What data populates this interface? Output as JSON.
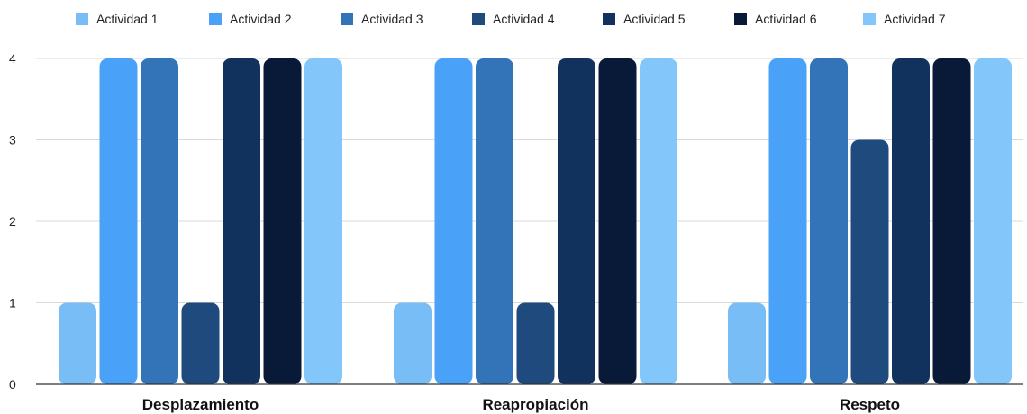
{
  "chart_data": {
    "type": "bar",
    "categories": [
      "Desplazamiento",
      "Reapropiación",
      "Respeto"
    ],
    "series": [
      {
        "name": "Actividad 1",
        "color": "#78bdf5",
        "values": [
          1,
          1,
          1
        ]
      },
      {
        "name": "Actividad 2",
        "color": "#4aa1f8",
        "values": [
          4,
          4,
          4
        ]
      },
      {
        "name": "Actividad 3",
        "color": "#3274b7",
        "values": [
          4,
          4,
          4
        ]
      },
      {
        "name": "Actividad 4",
        "color": "#1f4a7d",
        "values": [
          1,
          1,
          3
        ]
      },
      {
        "name": "Actividad 5",
        "color": "#12325e",
        "values": [
          4,
          4,
          4
        ]
      },
      {
        "name": "Actividad 6",
        "color": "#081a38",
        "values": [
          4,
          4,
          4
        ]
      },
      {
        "name": "Actividad 7",
        "color": "#83c7fa",
        "values": [
          4,
          4,
          4
        ]
      }
    ],
    "y_ticks": [
      "0",
      "1",
      "2",
      "3",
      "4"
    ],
    "ylim": [
      0,
      4
    ],
    "grid": true,
    "legend_position": "top"
  }
}
